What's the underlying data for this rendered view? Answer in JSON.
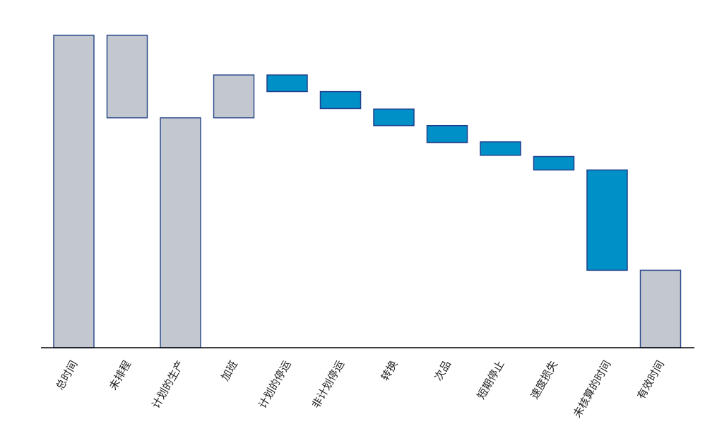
{
  "chart_data": {
    "type": "bar",
    "subtype": "waterfall",
    "title": "",
    "xlabel": "",
    "ylabel": "",
    "ylim": [
      0,
      100
    ],
    "categories": [
      "总时间",
      "未排程",
      "计划的生产",
      "加班",
      "计划的停运",
      "非计划停运",
      "转换",
      "次品",
      "短期停止",
      "速度损失",
      "未核算的时间",
      "有效时间"
    ],
    "bars": [
      {
        "category": "总时间",
        "start": 0,
        "end": 100,
        "kind": "total"
      },
      {
        "category": "未排程",
        "start": 73.6,
        "end": 100,
        "kind": "total"
      },
      {
        "category": "计划的生产",
        "start": 0,
        "end": 73.6,
        "kind": "total"
      },
      {
        "category": "加班",
        "start": 73.6,
        "end": 87.3,
        "kind": "total"
      },
      {
        "category": "计划的停运",
        "start": 82.0,
        "end": 87.3,
        "kind": "loss"
      },
      {
        "category": "非计划停运",
        "start": 76.6,
        "end": 82.0,
        "kind": "loss"
      },
      {
        "category": "转换",
        "start": 71.1,
        "end": 76.4,
        "kind": "loss"
      },
      {
        "category": "次品",
        "start": 65.7,
        "end": 71.1,
        "kind": "loss"
      },
      {
        "category": "短期停止",
        "start": 61.6,
        "end": 65.9,
        "kind": "loss"
      },
      {
        "category": "速度损失",
        "start": 56.9,
        "end": 61.2,
        "kind": "loss"
      },
      {
        "category": "未核算的时间",
        "start": 24.8,
        "end": 56.9,
        "kind": "loss"
      },
      {
        "category": "有效时间",
        "start": 0,
        "end": 24.8,
        "kind": "total"
      }
    ],
    "grid": false,
    "legend": "none",
    "colors": {
      "total_fill": "#c3c7cf",
      "total_stroke": "#2e4a8c",
      "loss_fill": "#0090c8",
      "loss_stroke": "#1f3f8c",
      "axis": "#000000",
      "label": "#222222"
    }
  }
}
